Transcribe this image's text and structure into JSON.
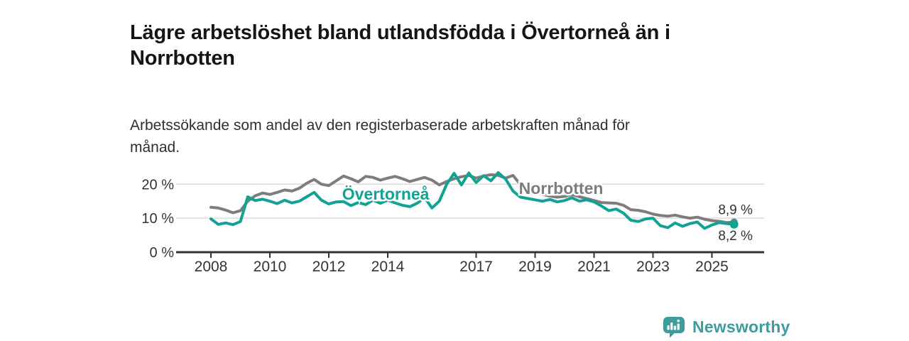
{
  "header": {
    "title_lines": [
      "Lägre arbetslöshet bland utlandsfödda i Övertorneå än i",
      "Norrbotten"
    ],
    "subtitle_lines": [
      "Arbetssökande som andel av den registerbaserade arbetskraften månad för",
      "månad."
    ]
  },
  "branding": {
    "logo_text": "Newsworthy",
    "logo_icon": "bar-chart-speech-bubble-icon",
    "logo_color": "#3d9c9d"
  },
  "colors": {
    "overtornea": "#12a294",
    "norrbotten": "#7d7d7d",
    "title_text": "#151515",
    "subtitle_text": "#2f2f2f",
    "axis": "#333333",
    "axis_text": "#333333",
    "gridline": "#dbdbdb",
    "end_label_text": "#333333",
    "background": "#ffffff"
  },
  "chart_data": {
    "type": "line",
    "title": "Lägre arbetslöshet bland utlandsfödda i Övertorneå än i Norrbotten",
    "subtitle": "Arbetssökande som andel av den registerbaserade arbetskraften månad för månad.",
    "unit": "%",
    "grid": "horizontal",
    "x_start": 2008.0,
    "x_step_years": 0.25,
    "xlim": [
      2006.8,
      2026.8
    ],
    "ylim": [
      0,
      25
    ],
    "x_axis": {
      "ticks": [
        {
          "value": 2008,
          "label": "2008"
        },
        {
          "value": 2010,
          "label": "2010"
        },
        {
          "value": 2012,
          "label": "2012"
        },
        {
          "value": 2014,
          "label": "2014"
        },
        {
          "value": 2017,
          "label": "2017"
        },
        {
          "value": 2019,
          "label": "2019"
        },
        {
          "value": 2021,
          "label": "2021"
        },
        {
          "value": 2023,
          "label": "2023"
        },
        {
          "value": 2025,
          "label": "2025"
        }
      ]
    },
    "y_axis": {
      "ticks": [
        {
          "value": 0,
          "label": "0 %"
        },
        {
          "value": 10,
          "label": "10 %"
        },
        {
          "value": 20,
          "label": "20 %"
        }
      ]
    },
    "series": [
      {
        "name": "Norrbotten",
        "color": "#7d7d7d",
        "end_label": "8,9 %",
        "end_label_position": "above",
        "label_pos": {
          "x": 2019.88,
          "y": 18.8
        },
        "values": [
          13.2,
          13.0,
          12.4,
          11.6,
          12.2,
          15.0,
          16.6,
          17.4,
          17.0,
          17.6,
          18.3,
          18.0,
          18.8,
          20.3,
          21.4,
          20.0,
          19.6,
          21.0,
          22.4,
          21.6,
          20.7,
          22.3,
          22.0,
          21.2,
          21.8,
          22.3,
          21.6,
          20.8,
          21.4,
          22.0,
          21.2,
          19.8,
          20.8,
          21.6,
          22.2,
          22.6,
          21.8,
          22.4,
          22.8,
          22.6,
          21.8,
          22.6,
          19.9,
          18.5,
          17.8,
          17.0,
          16.5,
          16.2,
          16.4,
          16.9,
          16.3,
          15.8,
          15.2,
          14.6,
          14.5,
          14.4,
          13.8,
          12.5,
          12.3,
          11.9,
          11.2,
          10.8,
          10.6,
          10.9,
          10.4,
          10.0,
          10.3,
          9.7,
          9.3,
          9.1,
          8.7,
          8.9
        ]
      },
      {
        "name": "Övertorneå",
        "color": "#12a294",
        "end_label": "8,2 %",
        "end_label_position": "below",
        "label_pos": {
          "x": 2013.93,
          "y": 17.1
        },
        "values": [
          9.8,
          8.2,
          8.6,
          8.1,
          9.0,
          16.3,
          15.2,
          15.6,
          15.0,
          14.3,
          15.3,
          14.5,
          15.0,
          16.3,
          17.6,
          15.3,
          14.2,
          14.8,
          14.9,
          13.7,
          14.6,
          14.0,
          15.3,
          14.4,
          15.3,
          14.5,
          13.8,
          13.4,
          14.4,
          16.1,
          13.0,
          15.0,
          20.0,
          23.2,
          19.8,
          23.3,
          20.5,
          22.5,
          21.0,
          23.4,
          21.5,
          18.0,
          16.2,
          15.8,
          15.4,
          15.0,
          15.5,
          14.8,
          15.2,
          16.0,
          15.0,
          15.4,
          14.8,
          13.6,
          12.2,
          12.7,
          11.5,
          9.4,
          9.0,
          9.8,
          10.0,
          7.8,
          7.2,
          8.6,
          7.6,
          8.4,
          8.9,
          7.0,
          8.0,
          8.7,
          8.4,
          8.2
        ]
      }
    ]
  }
}
